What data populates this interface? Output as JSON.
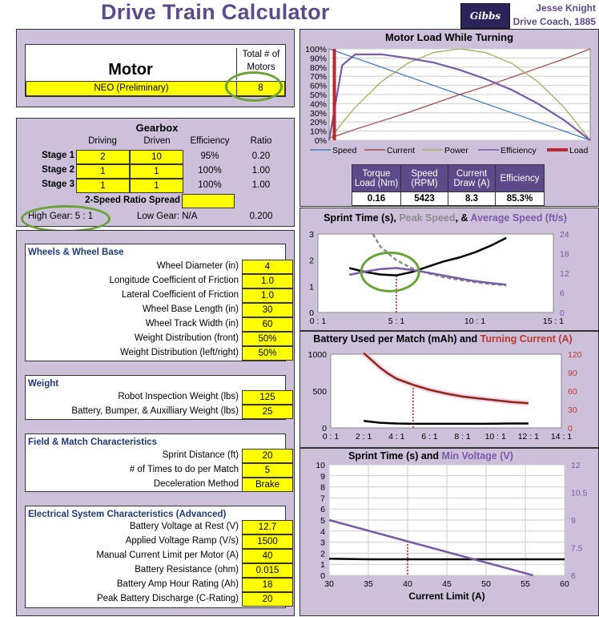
{
  "header": {
    "title": "Drive Train Calculator",
    "author": "Jesse Knight",
    "team": "Drive Coach, 1885",
    "logo_text": "Gibbs"
  },
  "motor": {
    "heading": "Motor",
    "count_label": "Total # of Motors",
    "name": "NEO (Preliminary)",
    "count": "8"
  },
  "gearbox": {
    "heading": "Gearbox",
    "columns": [
      "Driving",
      "Driven",
      "Efficiency",
      "Ratio"
    ],
    "stages": [
      {
        "label": "Stage 1",
        "driving": "2",
        "driven": "10",
        "efficiency": "95%",
        "ratio": "0.20"
      },
      {
        "label": "Stage 2",
        "driving": "1",
        "driven": "1",
        "efficiency": "100%",
        "ratio": "1.00"
      },
      {
        "label": "Stage 3",
        "driving": "1",
        "driven": "1",
        "efficiency": "100%",
        "ratio": "1.00"
      }
    ],
    "spread_label": "2-Speed Ratio Spread",
    "high_gear": "High Gear:  5 : 1",
    "low_gear": "Low Gear:  N/A",
    "total_ratio": "0.200"
  },
  "wheels": {
    "heading": "Wheels & Wheel Base",
    "rows": [
      {
        "label": "Wheel Diameter (in)",
        "value": "4"
      },
      {
        "label": "Longitude Coefficient of Friction",
        "value": "1.0"
      },
      {
        "label": "Lateral Coefficient of Friction",
        "value": "1.0"
      },
      {
        "label": "Wheel Base Length (in)",
        "value": "30"
      },
      {
        "label": "Wheel Track Width (in)",
        "value": "60"
      },
      {
        "label": "Weight Distribution (front)",
        "value": "50%"
      },
      {
        "label": "Weight Distribution (left/right)",
        "value": "50%"
      }
    ]
  },
  "weight": {
    "heading": "Weight",
    "rows": [
      {
        "label": "Robot Inspection Weight (lbs)",
        "value": "125"
      },
      {
        "label": "Battery, Bumper, & Auxilliary Weight (lbs)",
        "value": "25"
      }
    ]
  },
  "field": {
    "heading": "Field & Match Characteristics",
    "rows": [
      {
        "label": "Sprint Distance (ft)",
        "value": "20"
      },
      {
        "label": "# of Times to do per Match",
        "value": "5"
      },
      {
        "label": "Deceleration Method",
        "value": "Brake"
      }
    ]
  },
  "electrical": {
    "heading": "Electrical System Characteristics (Advanced)",
    "rows": [
      {
        "label": "Battery Voltage at Rest (V)",
        "value": "12.7"
      },
      {
        "label": "Applied Voltage Ramp (V/s)",
        "value": "1500"
      },
      {
        "label": "Manual Current Limit per Motor (A)",
        "value": "40"
      },
      {
        "label": "Battery Resistance (ohm)",
        "value": "0.015"
      },
      {
        "label": "Battery Amp Hour Rating (Ah)",
        "value": "18"
      },
      {
        "label": "Peak Battery Discharge (C-Rating)",
        "value": "20"
      }
    ]
  },
  "chart_data": [
    {
      "type": "line",
      "title": "Motor Load While Turning",
      "yticks": [
        "100%",
        "90%",
        "80%",
        "70%",
        "60%",
        "50%",
        "40%",
        "30%",
        "20%",
        "10%",
        "0%"
      ],
      "ylim": [
        0,
        100
      ],
      "x": [
        0,
        0.05,
        0.1,
        0.2,
        0.3,
        0.4,
        0.5,
        0.6,
        0.7,
        0.8,
        0.9,
        1.0
      ],
      "series": [
        {
          "name": "Speed",
          "color": "#4a7ebb",
          "values": [
            100,
            95,
            90,
            80,
            70,
            60,
            50,
            40,
            30,
            20,
            10,
            0
          ]
        },
        {
          "name": "Current",
          "color": "#a0504a",
          "values": [
            2,
            7,
            12,
            21,
            30,
            40,
            50,
            59,
            69,
            79,
            89,
            100
          ]
        },
        {
          "name": "Power",
          "color": "#a0b060",
          "values": [
            0,
            19,
            36,
            64,
            84,
            96,
            100,
            96,
            84,
            64,
            36,
            0
          ]
        },
        {
          "name": "Efficiency",
          "color": "#7b59a8",
          "values": [
            0,
            82,
            94,
            94,
            90,
            85,
            77,
            67,
            55,
            40,
            22,
            0
          ]
        }
      ],
      "load_marker": {
        "name": "Load",
        "color": "#c0272d",
        "x": 0.02
      },
      "table": {
        "headers": [
          "Torque Load (Nm)",
          "Speed (RPM)",
          "Current Draw (A)",
          "Efficiency"
        ],
        "values": [
          "0.16",
          "5423",
          "8.3",
          "85.3%"
        ]
      }
    },
    {
      "type": "line",
      "title_parts": [
        {
          "text": "Sprint Time (s), ",
          "color": "#000000"
        },
        {
          "text": "Peak Speed",
          "color": "#8c8c8c"
        },
        {
          "text": ", & ",
          "color": "#000000"
        },
        {
          "text": "Average Speed (ft/s)",
          "color": "#7b59a8"
        }
      ],
      "xticks": [
        "0 : 1",
        "5 : 1",
        "10 : 1",
        "15 : 1"
      ],
      "xlim": [
        0,
        15
      ],
      "yleft": {
        "ticks": [
          "0",
          "1",
          "2",
          "3"
        ],
        "lim": [
          0,
          3
        ]
      },
      "yright": {
        "ticks": [
          "0",
          "6",
          "12",
          "18",
          "24"
        ],
        "lim": [
          0,
          24
        ]
      },
      "series": [
        {
          "name": "Sprint Time",
          "axis": "left",
          "color": "#000000",
          "x": [
            2,
            3,
            4,
            5,
            6,
            7,
            8,
            9,
            10,
            11,
            12
          ],
          "values": [
            1.7,
            1.55,
            1.45,
            1.42,
            1.55,
            1.75,
            1.95,
            2.1,
            2.3,
            2.55,
            2.85
          ]
        },
        {
          "name": "Peak Speed",
          "axis": "right",
          "color": "#8c8c8c",
          "dash": true,
          "x": [
            3.5,
            4,
            5,
            6,
            7,
            8,
            9,
            10,
            11,
            12
          ],
          "values": [
            24,
            20,
            16,
            13.5,
            12,
            10.8,
            10,
            9.3,
            8.7,
            8.3
          ]
        },
        {
          "name": "Average Speed",
          "axis": "right",
          "color": "#7b59a8",
          "x": [
            2,
            3,
            4,
            5,
            6,
            7,
            8,
            9,
            10,
            11,
            12
          ],
          "values": [
            11.5,
            12.5,
            13.3,
            13.6,
            13.0,
            12.2,
            11.3,
            10.4,
            9.6,
            9.0,
            8.5
          ]
        }
      ],
      "marker_x": 5
    },
    {
      "type": "line",
      "title_parts": [
        {
          "text": "Battery Used per Match (mAh) and ",
          "color": "#000000"
        },
        {
          "text": "Turning Current (A)",
          "color": "#c0392b"
        }
      ],
      "xticks": [
        "0 : 1",
        "2 : 1",
        "4 : 1",
        "6 : 1",
        "8 : 1",
        "10 : 1",
        "12 : 1",
        "14 : 1"
      ],
      "xlim": [
        0,
        14
      ],
      "yleft": {
        "ticks": [
          "0",
          "500",
          "1000"
        ],
        "lim": [
          0,
          1000
        ]
      },
      "yright": {
        "ticks": [
          "0",
          "30",
          "60",
          "90",
          "120"
        ],
        "lim": [
          0,
          120
        ]
      },
      "series": [
        {
          "name": "Battery Used",
          "axis": "left",
          "color": "#000000",
          "x": [
            2,
            3,
            4,
            5,
            6,
            7,
            8,
            9,
            10,
            11,
            12
          ],
          "values": [
            95,
            70,
            60,
            55,
            55,
            55,
            55,
            55,
            58,
            60,
            60
          ]
        },
        {
          "name": "Turning Current",
          "axis": "right",
          "color": "#8b2a10",
          "x": [
            2,
            2.5,
            3,
            3.5,
            4,
            5,
            6,
            7,
            8,
            9,
            10,
            11,
            12
          ],
          "values": [
            122,
            110,
            98,
            88,
            80,
            70,
            62,
            56,
            51,
            48,
            45,
            42,
            40
          ]
        }
      ],
      "marker_x": 5
    },
    {
      "type": "line",
      "title_parts": [
        {
          "text": "Sprint Time (s) and ",
          "color": "#000000"
        },
        {
          "text": "Min Voltage (V)",
          "color": "#7b59a8"
        }
      ],
      "xlabel": "Current Limit (A)",
      "xticks": [
        "30",
        "35",
        "40",
        "45",
        "50",
        "55",
        "60"
      ],
      "xlim": [
        30,
        60
      ],
      "yleft": {
        "ticks": [
          "0",
          "1",
          "2",
          "3",
          "4",
          "5",
          "6",
          "7",
          "8",
          "9",
          "10"
        ],
        "lim": [
          0,
          10
        ]
      },
      "yright": {
        "ticks": [
          "6",
          "7.5",
          "9",
          "10.5",
          "12"
        ],
        "lim": [
          6,
          12
        ]
      },
      "series": [
        {
          "name": "Sprint Time",
          "axis": "left",
          "color": "#000000",
          "x": [
            30,
            35,
            40,
            45,
            50,
            55,
            60
          ],
          "values": [
            1.5,
            1.45,
            1.45,
            1.45,
            1.45,
            1.45,
            1.45
          ]
        },
        {
          "name": "Min Voltage",
          "axis": "right",
          "color": "#7b59a8",
          "x": [
            30,
            56
          ],
          "values": [
            9.0,
            6.0
          ]
        }
      ],
      "marker_x": 40
    }
  ]
}
